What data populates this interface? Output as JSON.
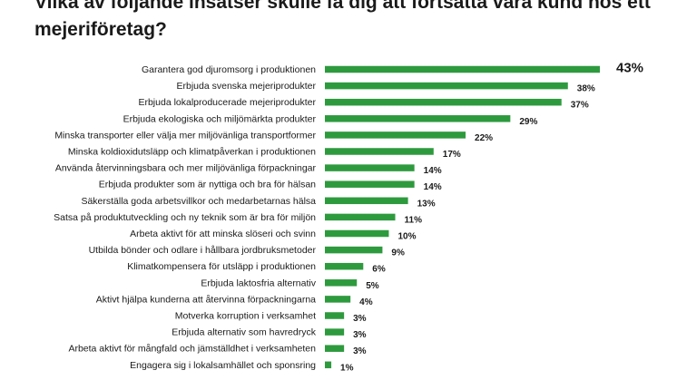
{
  "title": "Vilka av följande insatser skulle få dig att fortsätta vara kund hos ett mejeriföretag?",
  "colors": {
    "bar": "#2e9a3e",
    "text": "#1a1a1a"
  },
  "chart_data": {
    "type": "bar",
    "orientation": "horizontal",
    "xlim": [
      0,
      45
    ],
    "grid": false,
    "categories": [
      "Garantera god djuromsorg i produktionen",
      "Erbjuda svenska mejeriprodukter",
      "Erbjuda lokalproducerade mejeriprodukter",
      "Erbjuda ekologiska och miljömärkta produkter",
      "Minska transporter eller välja mer miljövänliga transportformer",
      "Minska koldioxidutsläpp och klimatpåverkan i produktionen",
      "Använda återvinningsbara och mer miljövänliga förpackningar",
      "Erbjuda produkter som är nyttiga och bra för hälsan",
      "Säkerställa goda arbetsvillkor och medarbetarnas hälsa",
      "Satsa på produktutveckling och ny teknik som är bra för miljön",
      "Arbeta aktivt för att minska slöseri och svinn",
      "Utbilda bönder och odlare i hållbara jordbruksmetoder",
      "Klimatkompensera för utsläpp i produktionen",
      "Erbjuda laktosfria alternativ",
      "Aktivt hjälpa kunderna att återvinna förpackningarna",
      "Motverka korruption i verksamhet",
      "Erbjuda alternativ som havredryck",
      "Arbeta aktivt för mångfald och jämställdhet i verksamheten",
      "Engagera sig i lokalsamhället och sponsring"
    ],
    "values": [
      43,
      38,
      37,
      29,
      22,
      17,
      14,
      14,
      13,
      11,
      10,
      9,
      6,
      5,
      4,
      3,
      3,
      3,
      1
    ],
    "value_labels": [
      "43%",
      "38%",
      "37%",
      "29%",
      "22%",
      "17%",
      "14%",
      "14%",
      "13%",
      "11%",
      "10%",
      "9%",
      "6%",
      "5%",
      "4%",
      "3%",
      "3%",
      "3%",
      "1%"
    ]
  }
}
